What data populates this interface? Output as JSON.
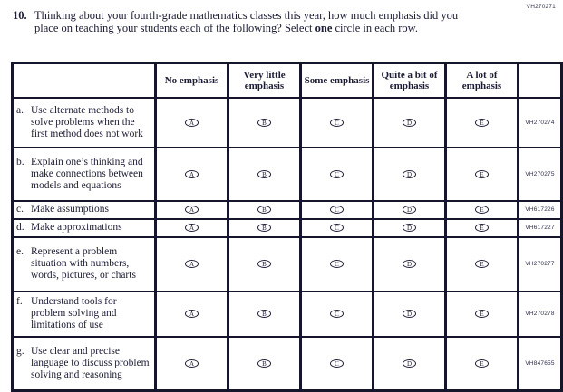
{
  "page": {
    "code_top_right": "VH270271",
    "question": {
      "number": "10.",
      "text_before_bold": "Thinking about your fourth-grade mathematics classes this year, how much emphasis did you place on teaching your students each of the following? Select ",
      "bold_word": "one",
      "text_after_bold": " circle in each row."
    }
  },
  "table": {
    "columns": [
      "No emphasis",
      "Very little emphasis",
      "Some emphasis",
      "Quite a bit of emphasis",
      "A lot of emphasis"
    ],
    "option_letters": [
      "A",
      "B",
      "C",
      "D",
      "E"
    ],
    "rows": [
      {
        "letter": "a.",
        "label": "Use alternate methods to solve problems when the first method does not work",
        "code": "VH270274"
      },
      {
        "letter": "b.",
        "label": "Explain one’s thinking and make connections between models and equations",
        "code": "VH270275"
      },
      {
        "letter": "c.",
        "label": "Make assumptions",
        "code": "VH617226"
      },
      {
        "letter": "d.",
        "label": "Make approximations",
        "code": "VH617227"
      },
      {
        "letter": "e.",
        "label": "Represent a problem situation with numbers, words, pictures, or charts",
        "code": "VH270277"
      },
      {
        "letter": "f.",
        "label": "Understand tools for problem solving and limitations of use",
        "code": "VH270278"
      },
      {
        "letter": "g.",
        "label": "Use clear and precise language to discuss problem solving and reasoning",
        "code": "VH847655"
      }
    ]
  }
}
